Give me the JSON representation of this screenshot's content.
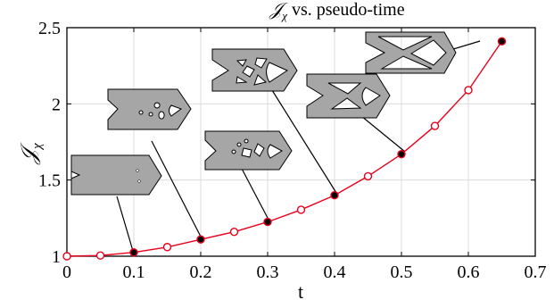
{
  "chart_data": {
    "type": "line",
    "title_symbol": "𝒥",
    "title_subscript": "χ",
    "title_suffix": " vs. pseudo-time",
    "xlabel": "t",
    "ylabel_symbol": "𝒥",
    "ylabel_subscript": "χ",
    "xlim": [
      0,
      0.7
    ],
    "ylim": [
      1,
      2.5
    ],
    "x_ticks": [
      0,
      0.1,
      0.2,
      0.3,
      0.4,
      0.5,
      0.6,
      0.7
    ],
    "x_tick_labels": [
      "0",
      "0.1",
      "0.2",
      "0.3",
      "0.4",
      "0.5",
      "0.6",
      "0.7"
    ],
    "y_ticks": [
      1,
      1.5,
      2,
      2.5
    ],
    "y_tick_labels": [
      "1",
      "1.5",
      "2",
      "2.5"
    ],
    "grid": true,
    "line_color": "#e8001a",
    "filled_marker_color": "#000000",
    "design_fill_color": "#a6a6a6",
    "series": [
      {
        "x": [
          0,
          0.05,
          0.1,
          0.15,
          0.2,
          0.25,
          0.3,
          0.35,
          0.4,
          0.45,
          0.5,
          0.55,
          0.6,
          0.65
        ],
        "y": [
          1.0,
          1.005,
          1.025,
          1.06,
          1.11,
          1.16,
          1.225,
          1.305,
          1.4,
          1.525,
          1.67,
          1.855,
          2.09,
          2.41
        ]
      }
    ],
    "annotated_points_x": [
      0.1,
      0.2,
      0.3,
      0.4,
      0.5,
      0.65
    ]
  }
}
